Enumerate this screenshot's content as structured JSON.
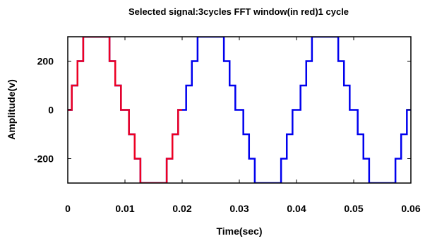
{
  "chart_data": {
    "type": "line",
    "title": "Selected signal:3cycles FFT window(in red)1 cycle",
    "xlabel": "Time(sec)",
    "ylabel": "Amplitude(v)",
    "xlim": [
      0,
      0.06
    ],
    "ylim": [
      -300,
      300
    ],
    "x_ticks": [
      0,
      0.01,
      0.02,
      0.03,
      0.04,
      0.05,
      0.06
    ],
    "x_tick_labels": [
      "0",
      "0.01",
      "0.02",
      "0.03",
      "0.04",
      "0.05",
      "0.06"
    ],
    "y_ticks": [
      -200,
      0,
      200
    ],
    "y_tick_labels": [
      "-200",
      "0",
      "200"
    ],
    "grid": false,
    "series": [
      {
        "color": "#0000ee",
        "x": [
          0,
          0.0007,
          0.0007,
          0.0017,
          0.0017,
          0.0027,
          0.0027,
          0.0073,
          0.0073,
          0.0083,
          0.0083,
          0.0093,
          0.0093,
          0.0107,
          0.0107,
          0.0117,
          0.0117,
          0.0127,
          0.0127,
          0.0173,
          0.0173,
          0.0183,
          0.0183,
          0.0193,
          0.0193,
          0.0207,
          0.0207,
          0.0217,
          0.0217,
          0.0227,
          0.0227,
          0.0273,
          0.0273,
          0.0283,
          0.0283,
          0.0293,
          0.0293,
          0.0307,
          0.0307,
          0.0317,
          0.0317,
          0.0327,
          0.0327,
          0.0373,
          0.0373,
          0.0383,
          0.0383,
          0.0393,
          0.0393,
          0.0407,
          0.0407,
          0.0417,
          0.0417,
          0.0427,
          0.0427,
          0.0473,
          0.0473,
          0.0483,
          0.0483,
          0.0493,
          0.0493,
          0.0507,
          0.0507,
          0.0517,
          0.0517,
          0.0527,
          0.0527,
          0.0573,
          0.0573,
          0.0583,
          0.0583,
          0.0593,
          0.0593,
          0.06
        ],
        "y": [
          0,
          0,
          100,
          100,
          200,
          200,
          300,
          300,
          200,
          200,
          100,
          100,
          0,
          0,
          -100,
          -100,
          -200,
          -200,
          -300,
          -300,
          -200,
          -200,
          -100,
          -100,
          0,
          0,
          100,
          100,
          200,
          200,
          300,
          300,
          200,
          200,
          100,
          100,
          0,
          0,
          -100,
          -100,
          -200,
          -200,
          -300,
          -300,
          -200,
          -200,
          -100,
          -100,
          0,
          0,
          100,
          100,
          200,
          200,
          300,
          300,
          200,
          200,
          100,
          100,
          0,
          0,
          -100,
          -100,
          -200,
          -200,
          -300,
          -300,
          -200,
          -200,
          -100,
          -100,
          0,
          0
        ]
      },
      {
        "color": "#ee0022",
        "x": [
          0,
          0.0007,
          0.0007,
          0.0017,
          0.0017,
          0.0027,
          0.0027,
          0.0073,
          0.0073,
          0.0083,
          0.0083,
          0.0093,
          0.0093,
          0.0107,
          0.0107,
          0.0117,
          0.0117,
          0.0127,
          0.0127,
          0.0173,
          0.0173,
          0.0183,
          0.0183,
          0.0193,
          0.0193,
          0.02
        ],
        "y": [
          0,
          0,
          100,
          100,
          200,
          200,
          300,
          300,
          200,
          200,
          100,
          100,
          0,
          0,
          -100,
          -100,
          -200,
          -200,
          -300,
          -300,
          -200,
          -200,
          -100,
          -100,
          0,
          0
        ]
      }
    ]
  }
}
